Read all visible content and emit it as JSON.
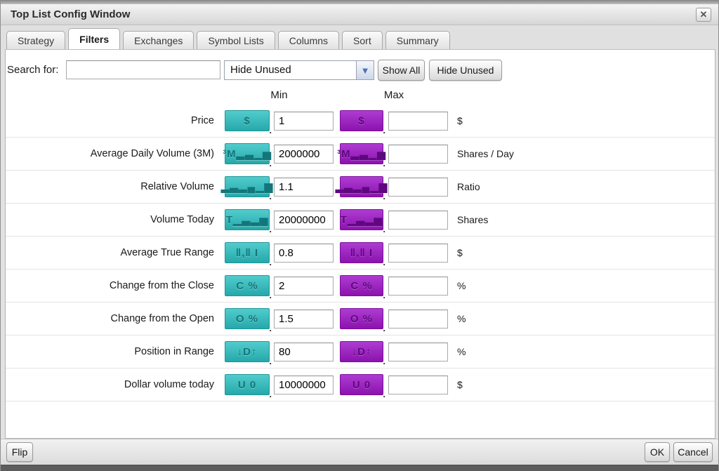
{
  "window": {
    "title": "Top List Config Window"
  },
  "icons": {
    "close": "✕",
    "chevron_down": "▼"
  },
  "tabs": [
    {
      "label": "Strategy",
      "active": false
    },
    {
      "label": "Filters",
      "active": true
    },
    {
      "label": "Exchanges",
      "active": false
    },
    {
      "label": "Symbol Lists",
      "active": false
    },
    {
      "label": "Columns",
      "active": false
    },
    {
      "label": "Sort",
      "active": false
    },
    {
      "label": "Summary",
      "active": false
    }
  ],
  "search": {
    "label": "Search for:",
    "input_value": "",
    "input_placeholder": "",
    "dropdown_value": "Hide Unused",
    "show_all_label": "Show All",
    "hide_unused_label": "Hide Unused"
  },
  "table": {
    "min_header": "Min",
    "max_header": "Max",
    "rows": [
      {
        "label": "Price",
        "glyph": "$",
        "min": "1",
        "max": "",
        "unit": "$"
      },
      {
        "label": "Average Daily Volume (3M)",
        "glyph": "³M▂▃▁▅",
        "min": "2000000",
        "max": "",
        "unit": "Shares / Day"
      },
      {
        "label": "Relative Volume",
        "glyph": "▂▃▂▄▁▆",
        "min": "1.1",
        "max": "",
        "unit": "Ratio"
      },
      {
        "label": "Volume Today",
        "glyph": "T▁▃▂▅",
        "min": "20000000",
        "max": "",
        "unit": "Shares"
      },
      {
        "label": "Average True Range",
        "glyph": "‖,‖ I",
        "min": "0.8",
        "max": "",
        "unit": "$"
      },
      {
        "label": "Change from the Close",
        "glyph": "C %",
        "min": "2",
        "max": "",
        "unit": "%"
      },
      {
        "label": "Change from the Open",
        "glyph": "O %",
        "min": "1.5",
        "max": "",
        "unit": "%"
      },
      {
        "label": "Position in Range",
        "glyph": "↓D↑",
        "min": "80",
        "max": "",
        "unit": "%"
      },
      {
        "label": "Dollar volume today",
        "glyph": "U 0",
        "min": "10000000",
        "max": "",
        "unit": "$"
      }
    ]
  },
  "footer": {
    "flip_label": "Flip",
    "ok_label": "OK",
    "cancel_label": "Cancel"
  },
  "colors": {
    "teal": "#2fb2b4",
    "purple": "#9a1cbe"
  }
}
